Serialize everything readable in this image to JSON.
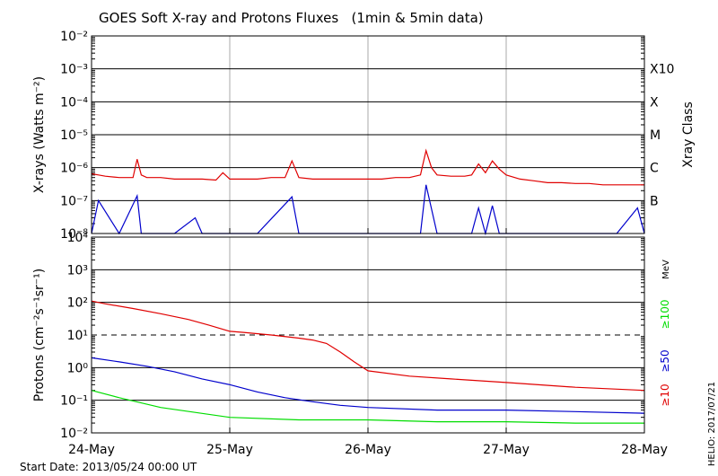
{
  "chart_data": {
    "type": "line",
    "title": "GOES Soft X-ray and Protons Fluxes   (1min & 5min data)",
    "x_ticks": [
      "24-May",
      "25-May",
      "26-May",
      "27-May",
      "28-May"
    ],
    "footer_left": "Start Date: 2013/05/24 00:00 UT",
    "footer_right": "HELIO: 2017/07/21",
    "colors": {
      "red": "#e00000",
      "blue": "#0000cc",
      "green": "#00dd00"
    },
    "panels": [
      {
        "id": "xray",
        "ylabel": "X-rays (Watts m⁻²)",
        "y_scale": "log",
        "ylim": [
          1e-08,
          0.01
        ],
        "y_ticks": [
          "10⁻⁸",
          "10⁻⁷",
          "10⁻⁶",
          "10⁻⁵",
          "10⁻⁴",
          "10⁻³",
          "10⁻²"
        ],
        "right_axis_label": "Xray Class",
        "class_labels": [
          {
            "label": "B",
            "value": 1e-07
          },
          {
            "label": "C",
            "value": 1e-06
          },
          {
            "label": "M",
            "value": 1e-05
          },
          {
            "label": "X",
            "value": 0.0001
          },
          {
            "label": "X10",
            "value": 0.001
          }
        ],
        "series": [
          {
            "color": "red",
            "x": [
              0,
              0.05,
              0.1,
              0.2,
              0.3,
              0.33,
              0.36,
              0.4,
              0.5,
              0.6,
              0.7,
              0.8,
              0.9,
              0.95,
              1.0,
              1.1,
              1.2,
              1.3,
              1.4,
              1.45,
              1.5,
              1.6,
              1.7,
              1.8,
              1.9,
              2.0,
              2.1,
              2.2,
              2.3,
              2.38,
              2.42,
              2.46,
              2.5,
              2.6,
              2.7,
              2.75,
              2.8,
              2.85,
              2.9,
              2.95,
              3.0,
              3.1,
              3.2,
              3.3,
              3.4,
              3.5,
              3.6,
              3.7,
              3.8,
              3.9,
              4.0
            ],
            "y": [
              6.5e-07,
              6e-07,
              5.5e-07,
              5e-07,
              5e-07,
              1.8e-06,
              6e-07,
              5e-07,
              5e-07,
              4.5e-07,
              4.5e-07,
              4.5e-07,
              4.2e-07,
              7e-07,
              4.5e-07,
              4.5e-07,
              4.5e-07,
              5e-07,
              5e-07,
              1.6e-06,
              5e-07,
              4.5e-07,
              4.5e-07,
              4.5e-07,
              4.5e-07,
              4.5e-07,
              4.5e-07,
              5e-07,
              5e-07,
              6e-07,
              3.3e-06,
              1e-06,
              6e-07,
              5.5e-07,
              5.5e-07,
              6e-07,
              1.3e-06,
              7e-07,
              1.6e-06,
              9e-07,
              6e-07,
              4.5e-07,
              4e-07,
              3.5e-07,
              3.5e-07,
              3.3e-07,
              3.3e-07,
              3e-07,
              3e-07,
              3e-07,
              3e-07
            ]
          },
          {
            "color": "blue",
            "x": [
              0,
              0.05,
              0.2,
              0.33,
              0.36,
              0.5,
              0.6,
              0.75,
              0.8,
              0.95,
              1.0,
              1.2,
              1.45,
              1.5,
              1.7,
              1.9,
              2.0,
              2.2,
              2.38,
              2.42,
              2.5,
              2.6,
              2.75,
              2.8,
              2.85,
              2.9,
              2.95,
              3.0,
              3.1,
              3.3,
              3.5,
              3.6,
              3.8,
              3.95,
              4.0
            ],
            "y": [
              1e-08,
              1e-07,
              1e-08,
              1.4e-07,
              1e-08,
              1e-08,
              1e-08,
              3e-08,
              1e-08,
              1e-08,
              1e-08,
              1e-08,
              1.3e-07,
              1e-08,
              1e-08,
              1e-08,
              1e-08,
              1e-08,
              1e-08,
              3e-07,
              1e-08,
              1e-08,
              1e-08,
              6e-08,
              1e-08,
              7e-08,
              1e-08,
              1e-08,
              1e-08,
              1e-08,
              1e-08,
              1e-08,
              1e-08,
              6e-08,
              1e-08
            ]
          }
        ]
      },
      {
        "id": "protons",
        "ylabel": "Protons (cm⁻²s⁻¹sr⁻¹)",
        "y_scale": "log",
        "ylim": [
          0.01,
          10000
        ],
        "y_ticks": [
          "10⁻²",
          "10⁻¹",
          "10⁰",
          "10¹",
          "10²",
          "10³",
          "10⁴"
        ],
        "right_axis_label": "MeV",
        "threshold": 10,
        "series": [
          {
            "name": "≥10",
            "color": "red",
            "x": [
              0,
              0.1,
              0.3,
              0.5,
              0.7,
              0.85,
              1.0,
              1.1,
              1.3,
              1.5,
              1.6,
              1.7,
              1.8,
              1.9,
              2.0,
              2.3,
              2.6,
              3.0,
              3.5,
              4.0
            ],
            "y": [
              110,
              90,
              65,
              45,
              30,
              20,
              13,
              12,
              10,
              8,
              7,
              5.5,
              3,
              1.5,
              0.8,
              0.55,
              0.45,
              0.35,
              0.25,
              0.2
            ]
          },
          {
            "name": "≥50",
            "color": "blue",
            "x": [
              0,
              0.2,
              0.4,
              0.6,
              0.8,
              1.0,
              1.2,
              1.4,
              1.6,
              1.8,
              2.0,
              2.5,
              3.0,
              3.5,
              4.0
            ],
            "y": [
              2,
              1.5,
              1.1,
              0.75,
              0.45,
              0.3,
              0.18,
              0.12,
              0.09,
              0.07,
              0.06,
              0.05,
              0.05,
              0.045,
              0.04
            ]
          },
          {
            "name": "≥100",
            "color": "green",
            "x": [
              0,
              0.2,
              0.5,
              1.0,
              1.5,
              2.0,
              2.5,
              3.0,
              3.5,
              4.0
            ],
            "y": [
              0.2,
              0.12,
              0.06,
              0.03,
              0.025,
              0.025,
              0.022,
              0.022,
              0.02,
              0.02
            ]
          }
        ]
      }
    ]
  }
}
